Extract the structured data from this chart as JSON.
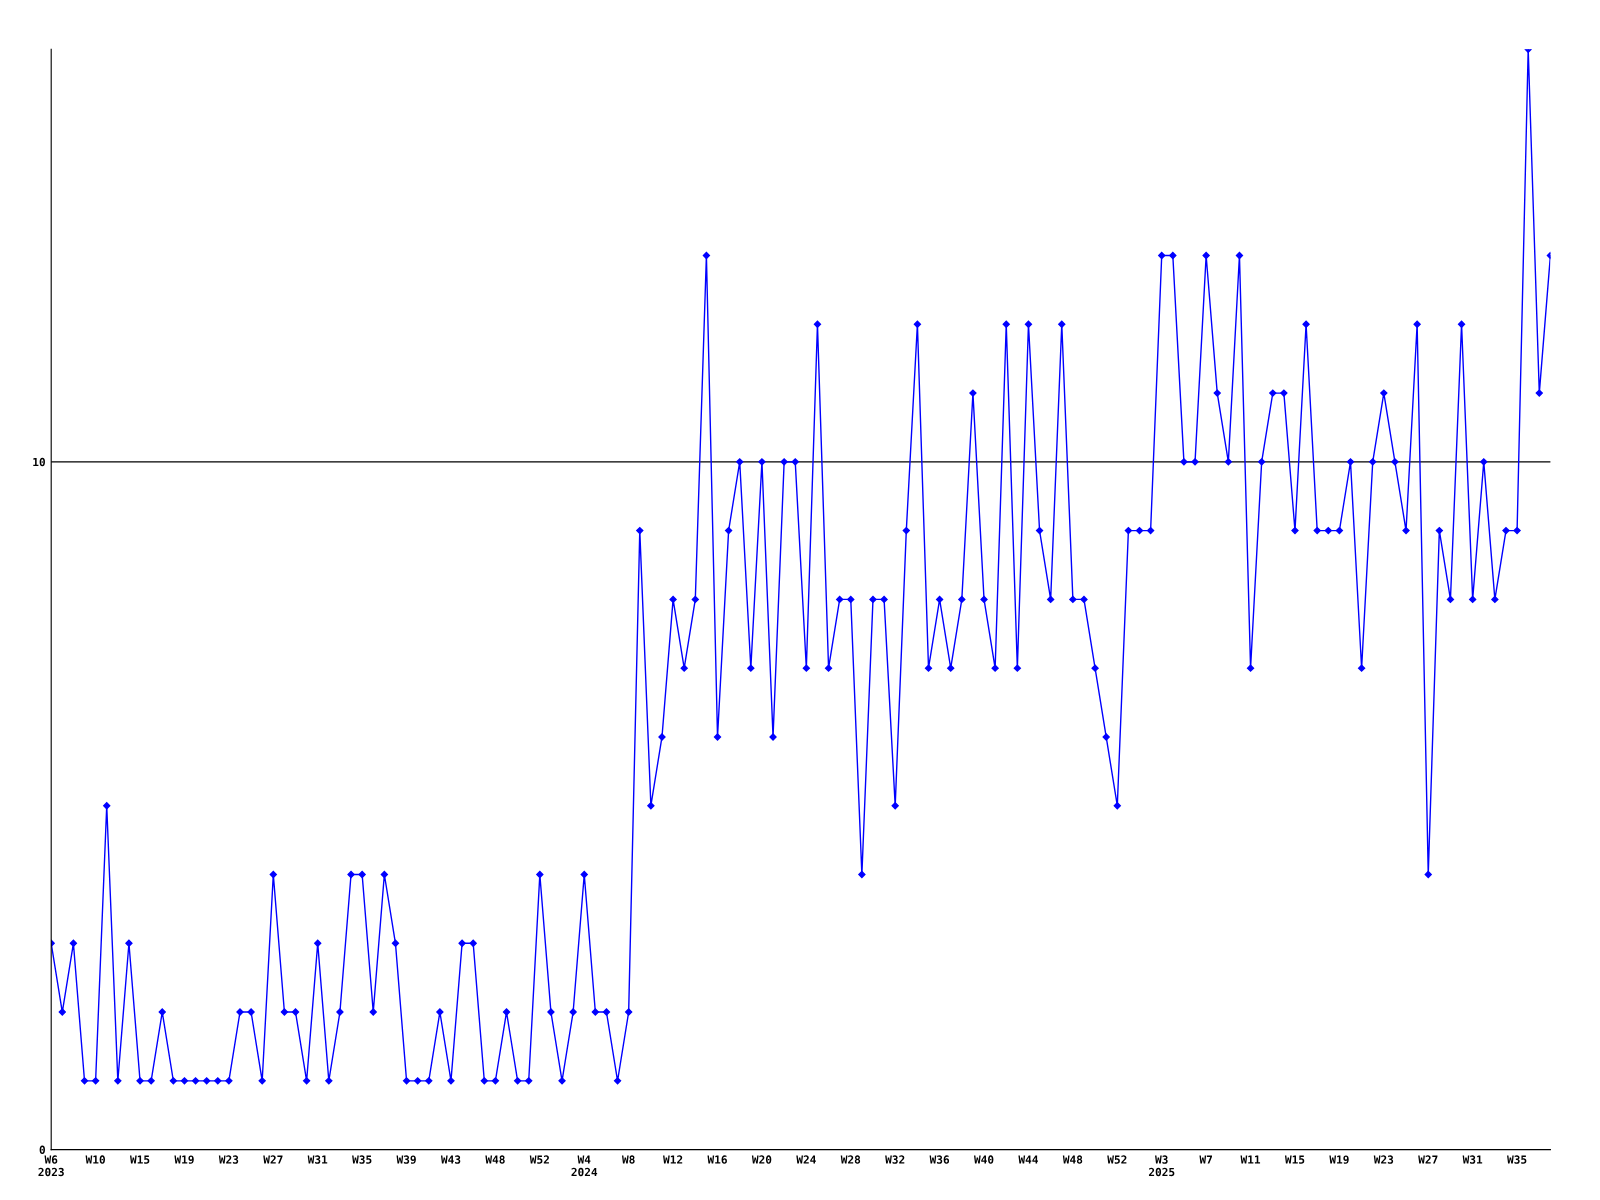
{
  "chart_data": {
    "type": "line",
    "categories": [
      "W6\n2023",
      null,
      null,
      null,
      "W10",
      null,
      null,
      null,
      "W15",
      null,
      null,
      null,
      "W19",
      null,
      null,
      null,
      "W23",
      null,
      null,
      null,
      "W27",
      null,
      null,
      null,
      "W31",
      null,
      null,
      null,
      "W35",
      null,
      null,
      null,
      "W39",
      null,
      null,
      null,
      "W43",
      null,
      null,
      null,
      "W48",
      null,
      null,
      null,
      "W52",
      null,
      null,
      null,
      "W4\n2024",
      null,
      null,
      null,
      "W8",
      null,
      null,
      null,
      "W12",
      null,
      null,
      null,
      "W16",
      null,
      null,
      null,
      "W20",
      null,
      null,
      null,
      "W24",
      null,
      null,
      null,
      "W28",
      null,
      null,
      null,
      "W32",
      null,
      null,
      null,
      "W36",
      null,
      null,
      null,
      "W40",
      null,
      null,
      null,
      "W44",
      null,
      null,
      null,
      "W48",
      null,
      null,
      null,
      "W52",
      null,
      null,
      null,
      "W3\n2025",
      null,
      null,
      null,
      "W7",
      null,
      null,
      null,
      "W11",
      null,
      null,
      null,
      "W15",
      null,
      null,
      null,
      "W19",
      null,
      null,
      null,
      "W23",
      null,
      null,
      null,
      "W27",
      null,
      null,
      null,
      "W31",
      null,
      null,
      null,
      "W35",
      null,
      null,
      null
    ],
    "series": [
      {
        "color": "#0000ff",
        "values": [
          3,
          2,
          3,
          1,
          1,
          5,
          1,
          3,
          1,
          1,
          2,
          1,
          1,
          1,
          1,
          1,
          1,
          2,
          2,
          1,
          4,
          2,
          2,
          1,
          3,
          1,
          2,
          4,
          4,
          2,
          4,
          3,
          1,
          1,
          1,
          2,
          1,
          3,
          3,
          1,
          1,
          2,
          1,
          1,
          4,
          2,
          1,
          2,
          4,
          2,
          2,
          1,
          2,
          9,
          5,
          6,
          8,
          7,
          8,
          13,
          6,
          9,
          10,
          7,
          10,
          6,
          10,
          10,
          7,
          12,
          7,
          8,
          8,
          4,
          8,
          8,
          5,
          9,
          12,
          7,
          8,
          7,
          8,
          11,
          8,
          7,
          12,
          7,
          12,
          9,
          8,
          12,
          8,
          8,
          7,
          6,
          5,
          9,
          9,
          9,
          13,
          13,
          10,
          10,
          13,
          11,
          10,
          13,
          7,
          10,
          11,
          11,
          9,
          12,
          9,
          9,
          9,
          10,
          7,
          10,
          11,
          10,
          9,
          12,
          4,
          9,
          8,
          12,
          8,
          10,
          8,
          9,
          9,
          16,
          11,
          13
        ]
      }
    ],
    "ylim": [
      0,
      16
    ],
    "yticks": [
      0,
      10
    ],
    "grid": "y",
    "marker": "diamond",
    "line_style": "solid"
  }
}
